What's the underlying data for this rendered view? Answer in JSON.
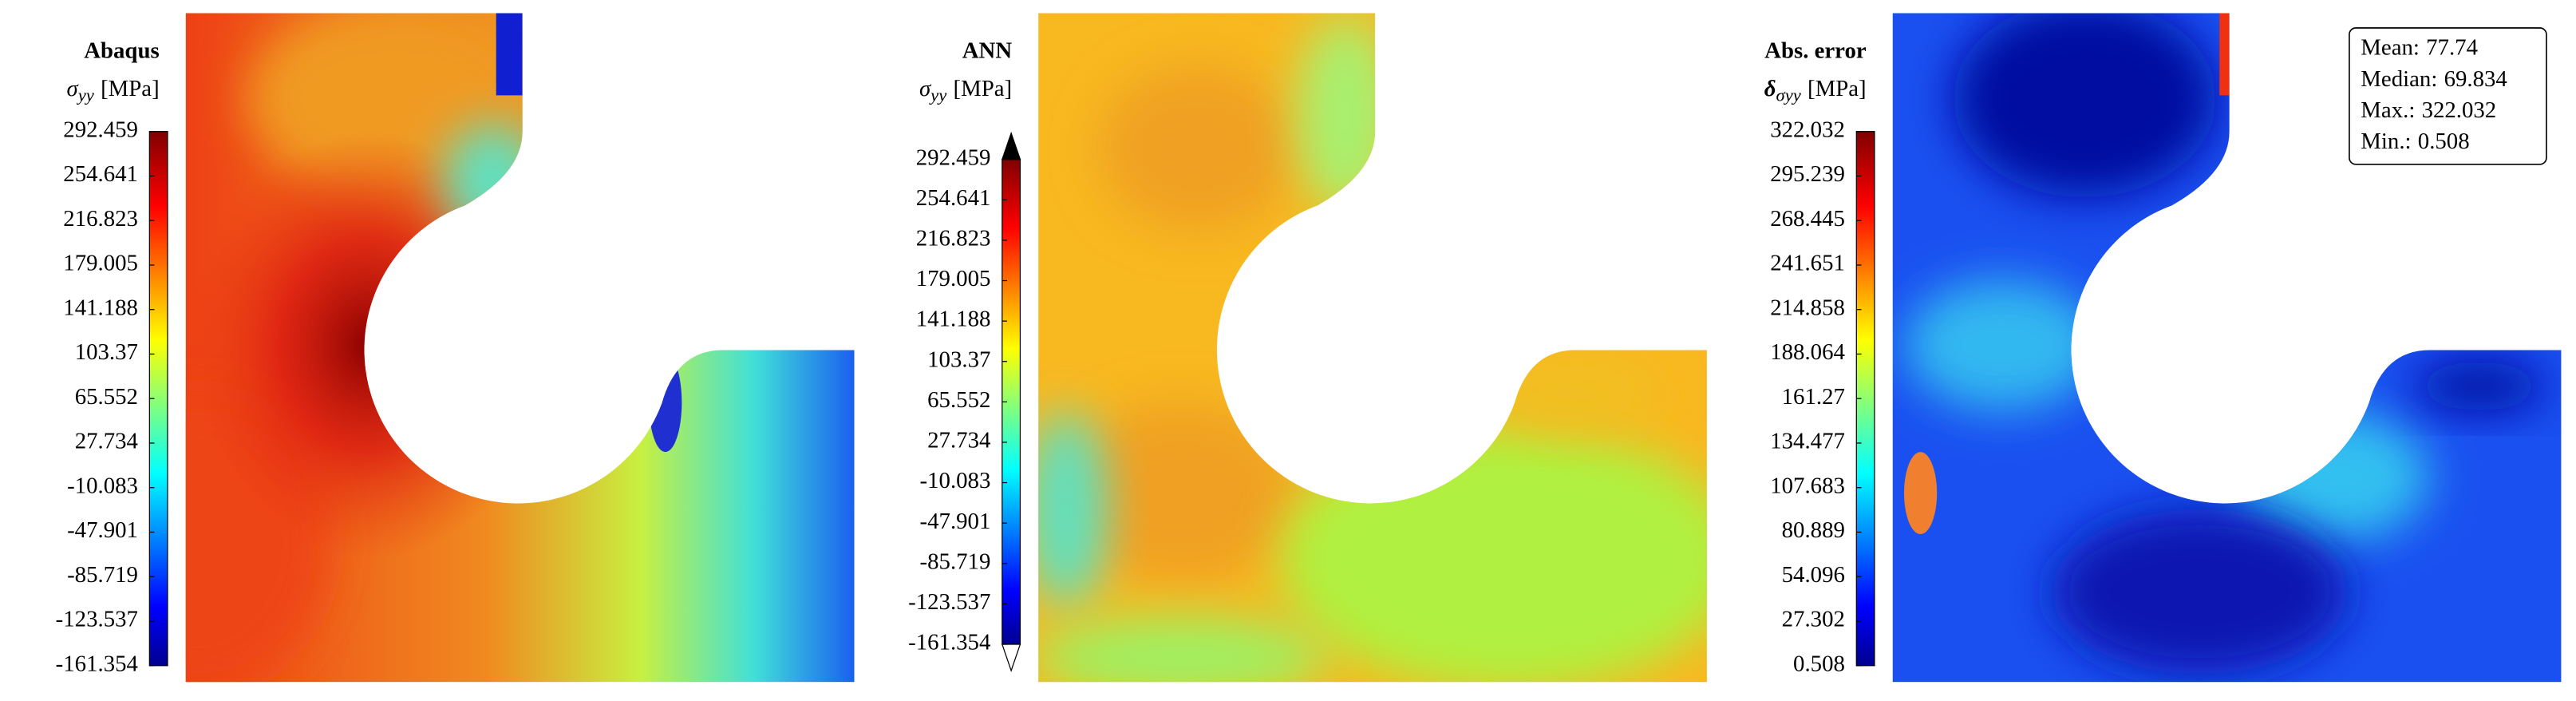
{
  "chart_data": [
    {
      "type": "contour",
      "title": "Abaqus",
      "colorbar_symbol": "σ",
      "colorbar_subscript": "yy",
      "colorbar_unit": "[MPa]",
      "colormap": "jet",
      "extend": "neither",
      "zlim": [
        -161.354,
        292.459
      ],
      "zticks": [
        292.459,
        254.641,
        216.823,
        179.005,
        141.188,
        103.37,
        65.552,
        27.734,
        -10.083,
        -47.901,
        -85.719,
        -123.537,
        -161.354
      ]
    },
    {
      "type": "contour",
      "title": "ANN",
      "colorbar_symbol": "σ",
      "colorbar_subscript": "yy",
      "colorbar_unit": "[MPa]",
      "colormap": "jet",
      "extend": "both",
      "zlim": [
        -161.354,
        292.459
      ],
      "zticks": [
        292.459,
        254.641,
        216.823,
        179.005,
        141.188,
        103.37,
        65.552,
        27.734,
        -10.083,
        -47.901,
        -85.719,
        -123.537,
        -161.354
      ]
    },
    {
      "type": "contour",
      "title": "Abs. error",
      "colorbar_symbol": "δ",
      "colorbar_subscript": "σyy",
      "colorbar_unit": "[MPa]",
      "colormap": "jet",
      "extend": "neither",
      "zlim": [
        0.508,
        322.032
      ],
      "zticks": [
        322.032,
        295.239,
        268.445,
        241.651,
        214.858,
        188.064,
        161.27,
        134.477,
        107.683,
        80.889,
        54.096,
        27.302,
        0.508
      ],
      "stats": [
        {
          "label": "Mean:",
          "value": 77.74
        },
        {
          "label": "Median:",
          "value": 69.834
        },
        {
          "label": "Max.:",
          "value": 322.032
        },
        {
          "label": "Min.:",
          "value": 0.508
        }
      ]
    }
  ]
}
